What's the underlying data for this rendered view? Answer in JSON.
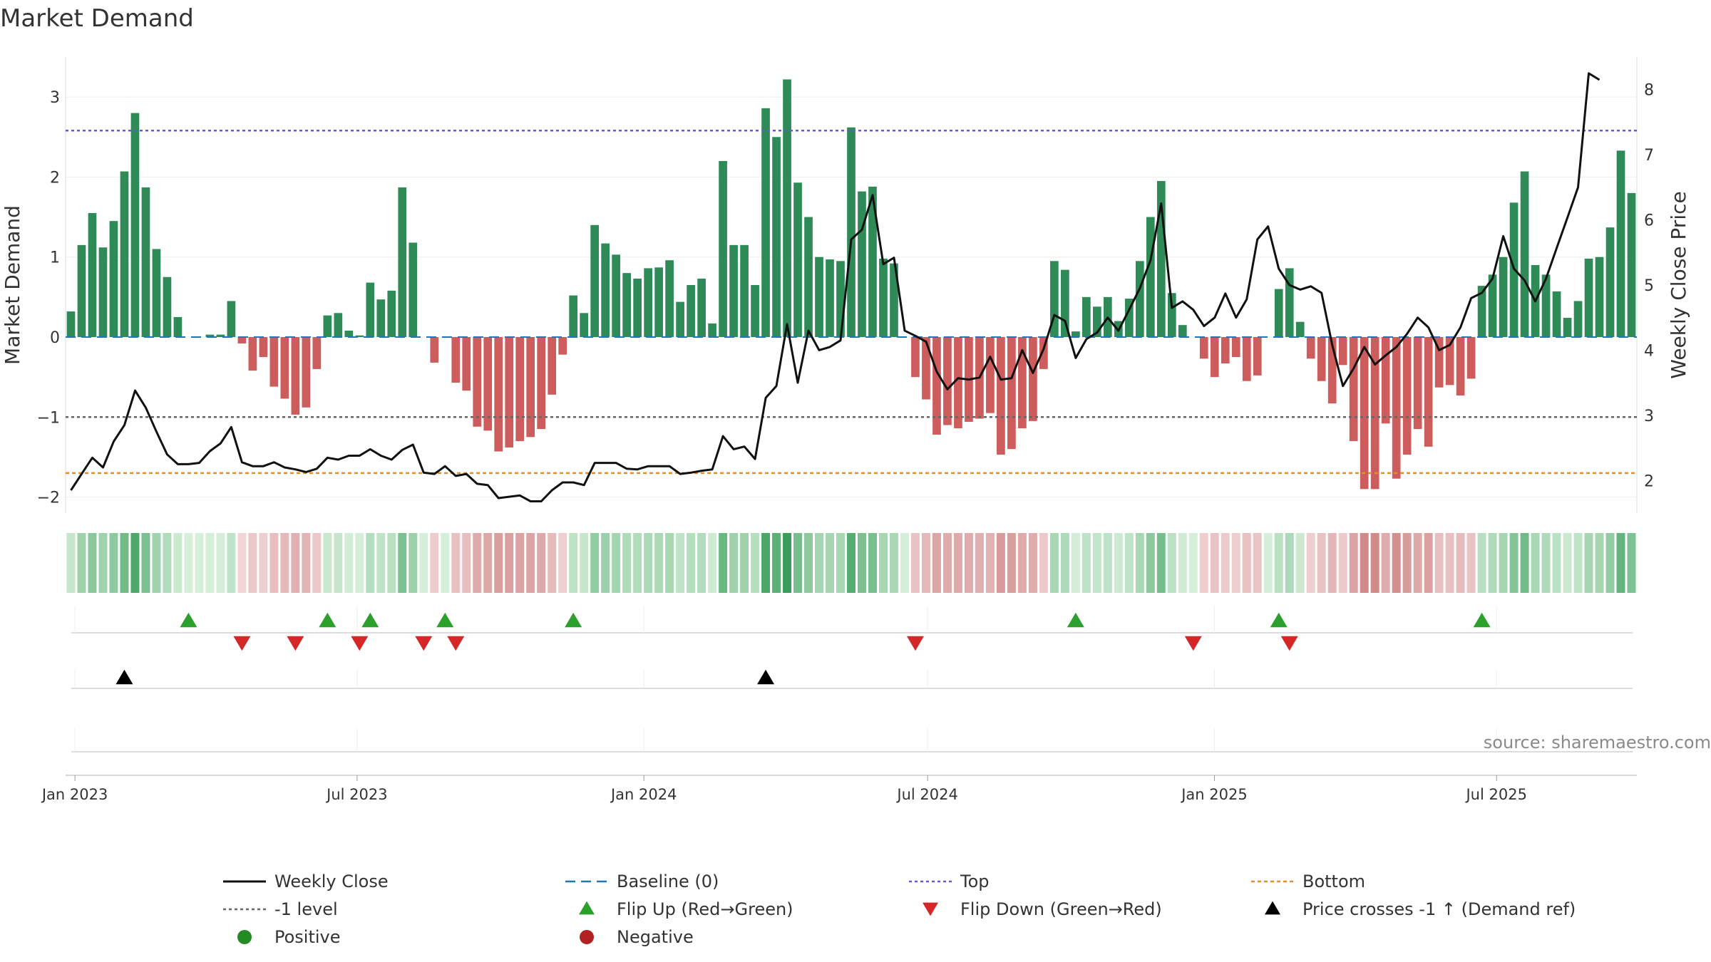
{
  "colors": {
    "positive_bar": "#2e8b57",
    "negative_bar": "#cd5c5c",
    "price_line": "#111111",
    "baseline": "#1f77b4",
    "top_line": "#6a5acd",
    "bottom_line": "#e0902b",
    "minus_one_line": "#666666",
    "flip_up": "#2ca02c",
    "flip_down": "#d62728",
    "cross": "#000000",
    "positive_dot": "#228b22",
    "negative_dot": "#b22222"
  },
  "chart_data": {
    "type": "bar",
    "title": "Market Demand",
    "ylabel": "Market Demand",
    "y2label": "Weekly Close Price",
    "ylim": [
      -2.2,
      3.5
    ],
    "y2lim": [
      1.5,
      8.5
    ],
    "yticks": [
      "3",
      "2",
      "1",
      "0",
      "−1",
      "−2"
    ],
    "y2ticks": [
      "8",
      "7",
      "6",
      "5",
      "4",
      "3",
      "2"
    ],
    "date_ticks": [
      "Jan 2023",
      "Jul 2023",
      "Jan 2024",
      "Jul 2024",
      "Jan 2025",
      "Jul 2025"
    ],
    "x_start": "2022-12-26",
    "x_end": "2025-09-29",
    "levels": {
      "top": 2.58,
      "bottom": -1.7,
      "minus_one": -1.0,
      "baseline": 0
    },
    "demand": [
      0.32,
      1.15,
      1.55,
      1.12,
      1.45,
      2.07,
      2.8,
      1.87,
      1.1,
      0.75,
      0.25,
      0,
      0,
      0.03,
      0.03,
      0.45,
      -0.08,
      -0.42,
      -0.25,
      -0.62,
      -0.77,
      -0.97,
      -0.88,
      -0.4,
      0.27,
      0.3,
      0.08,
      0.02,
      0.68,
      0.47,
      0.58,
      1.87,
      1.18,
      0,
      -0.32,
      0,
      -0.57,
      -0.67,
      -1.12,
      -1.17,
      -1.43,
      -1.38,
      -1.3,
      -1.25,
      -1.15,
      -0.72,
      -0.22,
      0.52,
      0.3,
      1.4,
      1.17,
      1.03,
      0.8,
      0.73,
      0.86,
      0.87,
      0.96,
      0.44,
      0.65,
      0.73,
      0.17,
      2.2,
      1.15,
      1.15,
      0.65,
      2.86,
      2.5,
      3.22,
      1.93,
      1.5,
      1.0,
      0.97,
      0.95,
      2.62,
      1.82,
      1.88,
      0.98,
      0.92,
      0,
      -0.5,
      -0.78,
      -1.22,
      -1.1,
      -1.14,
      -1.06,
      -1.02,
      -0.95,
      -1.47,
      -1.4,
      -1.14,
      -1.05,
      -0.4,
      0.95,
      0.84,
      0.07,
      0.5,
      0.38,
      0.5,
      0.2,
      0.48,
      0.95,
      1.5,
      1.95,
      0.55,
      0.15,
      0,
      -0.27,
      -0.5,
      -0.33,
      -0.25,
      -0.55,
      -0.48,
      0,
      0.6,
      0.86,
      0.19,
      -0.27,
      -0.55,
      -0.83,
      -0.35,
      -1.3,
      -1.9,
      -1.9,
      -1.08,
      -1.77,
      -1.47,
      -1.15,
      -1.37,
      -0.63,
      -0.6,
      -0.73,
      -0.52,
      0.64,
      0.78,
      1.0,
      1.68,
      2.07,
      0.9,
      0.78,
      0.57,
      0.24,
      0.45,
      0.98,
      1.0,
      1.37,
      2.33,
      1.8
    ],
    "price": [
      1.85,
      2.1,
      2.35,
      2.2,
      2.6,
      2.85,
      3.38,
      3.12,
      2.75,
      2.4,
      2.25,
      2.25,
      2.27,
      2.45,
      2.57,
      2.82,
      2.28,
      2.22,
      2.22,
      2.28,
      2.2,
      2.17,
      2.13,
      2.18,
      2.35,
      2.32,
      2.38,
      2.38,
      2.48,
      2.38,
      2.32,
      2.47,
      2.55,
      2.12,
      2.1,
      2.22,
      2.07,
      2.1,
      1.95,
      1.93,
      1.73,
      1.75,
      1.77,
      1.68,
      1.68,
      1.85,
      1.97,
      1.97,
      1.93,
      2.27,
      2.27,
      2.27,
      2.18,
      2.17,
      2.22,
      2.22,
      2.22,
      2.1,
      2.12,
      2.15,
      2.17,
      2.68,
      2.48,
      2.52,
      2.33,
      3.27,
      3.45,
      4.4,
      3.5,
      4.3,
      4.0,
      4.05,
      4.15,
      5.7,
      5.85,
      6.38,
      5.32,
      5.42,
      4.3,
      4.22,
      4.13,
      3.67,
      3.4,
      3.57,
      3.55,
      3.58,
      3.9,
      3.55,
      3.57,
      4.0,
      3.65,
      4.02,
      4.54,
      4.45,
      3.88,
      4.17,
      4.27,
      4.5,
      4.3,
      4.62,
      4.95,
      5.38,
      6.25,
      4.65,
      4.75,
      4.62,
      4.37,
      4.5,
      4.87,
      4.5,
      4.78,
      5.7,
      5.9,
      5.25,
      5.0,
      4.93,
      4.98,
      4.88,
      4.08,
      3.45,
      3.72,
      4.05,
      3.78,
      3.92,
      4.05,
      4.25,
      4.5,
      4.35,
      4.0,
      4.08,
      4.35,
      4.8,
      4.88,
      5.1,
      5.75,
      5.25,
      5.07,
      4.75,
      5.1,
      5.57,
      6.03,
      6.5,
      8.25,
      8.15
    ],
    "flip_up_weeks": [
      11,
      24,
      28,
      35,
      47,
      94,
      113,
      132
    ],
    "flip_down_weeks": [
      16,
      21,
      27,
      33,
      36,
      79,
      105,
      114
    ],
    "cross_weeks": [
      5,
      65
    ],
    "source": "source: sharemaestro.com"
  },
  "legend": [
    {
      "label": "Weekly Close",
      "symbol": "line"
    },
    {
      "label": "Baseline (0)",
      "symbol": "dash"
    },
    {
      "label": "Top",
      "symbol": "dot-purple"
    },
    {
      "label": "Bottom",
      "symbol": "dot-orange"
    },
    {
      "label": "-1 level",
      "symbol": "dot-grey"
    },
    {
      "label": "Flip Up (Red→Green)",
      "symbol": "tri-up-green"
    },
    {
      "label": "Flip Down (Green→Red)",
      "symbol": "tri-down-red"
    },
    {
      "label": "Price crosses -1 ↑ (Demand ref)",
      "symbol": "tri-up-black"
    },
    {
      "label": "Positive",
      "symbol": "dot-green"
    },
    {
      "label": "Negative",
      "symbol": "dot-red"
    }
  ]
}
